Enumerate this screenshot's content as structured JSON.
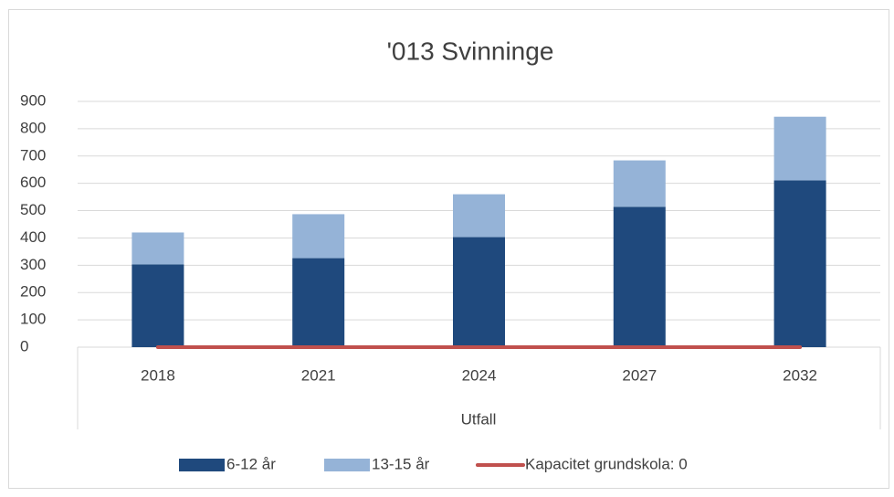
{
  "chart_data": {
    "type": "bar",
    "stacked": true,
    "title": "'013 Svinninge",
    "categories": [
      "2018",
      "2021",
      "2024",
      "2027",
      "2032"
    ],
    "xlabel": "Utfall",
    "series": [
      {
        "name": "6-12 år",
        "color": "#1f497d",
        "values": [
          303,
          326,
          403,
          514,
          611
        ]
      },
      {
        "name": "13-15 år",
        "color": "#95b3d7",
        "values": [
          117,
          161,
          157,
          170,
          233
        ]
      },
      {
        "name": "Kapacitet grundskola: 0",
        "type": "line",
        "color": "#c0504d",
        "values": [
          0,
          0,
          0,
          0,
          0
        ]
      }
    ],
    "ylim": [
      0,
      900
    ],
    "yticks": [
      0,
      100,
      200,
      300,
      400,
      500,
      600,
      700,
      800,
      900
    ],
    "grid": true
  }
}
